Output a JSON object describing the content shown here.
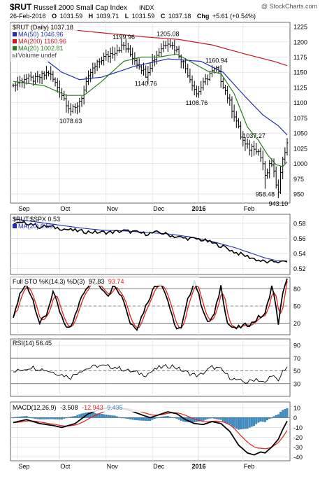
{
  "header": {
    "symbol": "$RUT",
    "name": "Russell 2000 Small Cap Index",
    "exchange": "INDX",
    "watermark": "@ StockCharts.com",
    "date": "26-Feb-2016",
    "open_label": "O",
    "open": "1031.59",
    "high_label": "H",
    "high": "1039.71",
    "low_label": "L",
    "low": "1031.59",
    "close_label": "C",
    "close": "1037.18",
    "chg_label": "Chg",
    "chg": "+5.61 (+0.54%)"
  },
  "colors": {
    "price_bars": "#000000",
    "ma50": "#1f2fb0",
    "ma200": "#c8171d",
    "ma20": "#2e7d22",
    "ratio": "#000000",
    "ratio_ma": "#1f2fb0",
    "sto_k": "#000000",
    "sto_d": "#e02020",
    "rsi": "#000000",
    "rsi_fill": "#b07878",
    "macd": "#000000",
    "macd_signal": "#e02020",
    "histogram": "#3a8fc8",
    "grid": "#dedede"
  },
  "chart_data": [
    {
      "type": "ohlc",
      "panel": "price",
      "title": "$RUT (Daily) 1037.18",
      "y_ticks": [
        950,
        975,
        1000,
        1025,
        1050,
        1075,
        1100,
        1125,
        1150,
        1175,
        1200,
        1225
      ],
      "ylim": [
        935,
        1232
      ],
      "x_tick_labels": [
        "Sep",
        "Oct",
        "Nov",
        "Dec",
        "2016",
        "Feb"
      ],
      "annotations": [
        {
          "label": "1078.63",
          "value": 1078.63
        },
        {
          "label": "1199.96",
          "value": 1199.96
        },
        {
          "label": "1140.76",
          "value": 1140.76
        },
        {
          "label": "1205.08",
          "value": 1205.08
        },
        {
          "label": "1108.76",
          "value": 1108.76
        },
        {
          "label": "1160.94",
          "value": 1160.94
        },
        {
          "label": "958.48",
          "value": 958.48
        },
        {
          "label": "1037.27",
          "value": 1037.27
        },
        {
          "label": "943.10",
          "value": 943.1
        }
      ],
      "series": [
        {
          "name": "MA(50)",
          "legend": "MA(50) 1046.96",
          "last": 1046.96
        },
        {
          "name": "MA(200)",
          "legend": "MA(200) 1160.96",
          "last": 1160.96
        },
        {
          "name": "MA(20)",
          "legend": "MA(20) 1002.81",
          "last": 1002.81
        },
        {
          "name": "Volume",
          "legend": "Volume undef"
        }
      ]
    },
    {
      "type": "line",
      "panel": "ratio",
      "title": "$RUT:$SPX 0.53",
      "y_ticks": [
        0.52,
        0.54,
        0.56,
        0.58
      ],
      "ylim": [
        0.512,
        0.592
      ],
      "series": [
        {
          "name": "$RUT:$SPX",
          "last": 0.53
        },
        {
          "name": "MA(20)",
          "legend": "MA(20) 0.53",
          "last": 0.53
        }
      ]
    },
    {
      "type": "line",
      "panel": "stochastic",
      "title": "Full STO %K(14,3) %D(3)",
      "k_value": "97.83",
      "d_value": "93.74",
      "y_ticks": [
        20,
        50,
        80
      ],
      "ylim": [
        0,
        100
      ]
    },
    {
      "type": "line",
      "panel": "rsi",
      "title": "RSI(14) 56.45",
      "y_ticks": [
        30,
        50,
        70,
        90
      ],
      "ylim": [
        10,
        100
      ]
    },
    {
      "type": "bar+line",
      "panel": "macd",
      "title": "MACD(12,26,9)",
      "macd_value": "-3.508",
      "signal_value": "-12.943",
      "hist_value": "9.435",
      "y_ticks": [
        -40,
        -30,
        -20,
        -10,
        0,
        10
      ],
      "ylim": [
        -44,
        16
      ]
    }
  ]
}
